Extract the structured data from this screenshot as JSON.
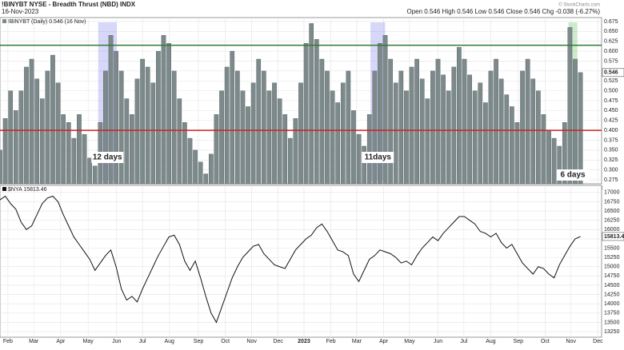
{
  "header": {
    "symbol": "!BINYBT NYSE - Breadth Thrust (NBD) INDX",
    "date": "16-Nov-2023",
    "quote": "Open 0.546 High 0.546 Low 0.546 Close 0.546 Chg -0.038 (-6.27%)",
    "watermark": "© StockCharts.com"
  },
  "chart_data": [
    {
      "type": "bar",
      "name": "!BINYBT (Daily) 0.546 (16 Nov)",
      "color": "#7d8a8c",
      "grid": true,
      "xlim": [
        0,
        114
      ],
      "ylim": [
        0.265,
        0.685
      ],
      "yticks": [
        0.275,
        {
          "value": 0.3,
          "label": "0.300"
        },
        0.325,
        {
          "value": 0.35,
          "label": "0.350"
        },
        0.375,
        {
          "value": 0.4,
          "label": "0.400"
        },
        0.425,
        {
          "value": 0.45,
          "label": "0.450"
        },
        0.475,
        {
          "value": 0.5,
          "label": "0.500"
        },
        0.525,
        {
          "value": 0.55,
          "label": "0.550"
        },
        0.575,
        {
          "value": 0.6,
          "label": "0.600"
        },
        0.625,
        {
          "value": 0.65,
          "label": "0.650"
        },
        0.675
      ],
      "xticks": [
        {
          "value": 1.5,
          "label": "Feb"
        },
        {
          "value": 6.4,
          "label": "Mar"
        },
        {
          "value": 11.5,
          "label": "Apr"
        },
        {
          "value": 16.7,
          "label": "May"
        },
        {
          "value": 22.1,
          "label": "Jun"
        },
        {
          "value": 27,
          "label": "Jul"
        },
        {
          "value": 32.1,
          "label": "Aug"
        },
        {
          "value": 37.6,
          "label": "Sep"
        },
        {
          "value": 42.7,
          "label": "Oct"
        },
        {
          "value": 47.7,
          "label": "Nov"
        },
        {
          "value": 52.7,
          "label": "Dec"
        },
        {
          "value": 57.6,
          "label": "2023"
        },
        {
          "value": 62.7,
          "label": "Feb"
        },
        {
          "value": 67.6,
          "label": "Mar"
        },
        {
          "value": 72.7,
          "label": "Apr"
        },
        {
          "value": 77.6,
          "label": "May"
        },
        {
          "value": 83,
          "label": "Jun"
        },
        {
          "value": 87.9,
          "label": "Jul"
        },
        {
          "value": 93,
          "label": "Aug"
        },
        {
          "value": 98.2,
          "label": "Sep"
        },
        {
          "value": 103.3,
          "label": "Oct"
        },
        {
          "value": 108.2,
          "label": "Nov"
        },
        {
          "value": 113.3,
          "label": "Dec"
        }
      ],
      "hlines": [
        {
          "value": 0.615,
          "color": "#2e7d32"
        },
        {
          "value": 0.4,
          "color": "#cc2222"
        }
      ],
      "annotations": [
        {
          "text": "12 days",
          "x0": 18.6,
          "x1": 22.1,
          "color": "#2a2aa8",
          "fill": "#8c8cf0"
        },
        {
          "text": "11days",
          "x0": 70.2,
          "x1": 73,
          "color": "#2a2aa8",
          "fill": "#8c8cf0"
        },
        {
          "text": "6 days",
          "x0": 107.7,
          "x1": 109.4,
          "color": "#2e7d32",
          "fill": "#6cc46c"
        }
      ],
      "values": [
        0.35,
        0.43,
        0.5,
        0.45,
        0.5,
        0.56,
        0.58,
        0.53,
        0.48,
        0.55,
        0.59,
        0.52,
        0.44,
        0.42,
        0.38,
        0.44,
        0.39,
        0.33,
        0.31,
        0.42,
        0.55,
        0.64,
        0.6,
        0.55,
        0.48,
        0.44,
        0.53,
        0.58,
        0.56,
        0.52,
        0.6,
        0.64,
        0.62,
        0.55,
        0.48,
        0.42,
        0.38,
        0.35,
        0.32,
        0.29,
        0.34,
        0.44,
        0.5,
        0.56,
        0.6,
        0.55,
        0.5,
        0.46,
        0.52,
        0.58,
        0.55,
        0.5,
        0.52,
        0.48,
        0.44,
        0.38,
        0.43,
        0.52,
        0.62,
        0.67,
        0.63,
        0.58,
        0.55,
        0.5,
        0.47,
        0.52,
        0.55,
        0.45,
        0.39,
        0.36,
        0.44,
        0.55,
        0.62,
        0.64,
        0.58,
        0.52,
        0.55,
        0.5,
        0.56,
        0.58,
        0.53,
        0.48,
        0.55,
        0.58,
        0.54,
        0.5,
        0.56,
        0.61,
        0.58,
        0.54,
        0.5,
        0.52,
        0.47,
        0.55,
        0.58,
        0.53,
        0.49,
        0.46,
        0.42,
        0.55,
        0.58,
        0.53,
        0.5,
        0.44,
        0.4,
        0.38,
        0.36,
        0.42,
        0.66,
        0.58,
        0.546
      ]
    },
    {
      "type": "line",
      "name": "$NYA 15813.46",
      "color": "#111111",
      "grid": true,
      "xlim": [
        0,
        114
      ],
      "ylim": [
        13100,
        17190
      ],
      "yticks": [
        13250,
        13500,
        13750,
        14000,
        14250,
        14500,
        14750,
        15000,
        15250,
        15500,
        15750,
        16000,
        16250,
        16500,
        16750,
        17000
      ],
      "xticks": [
        {
          "value": 1.5,
          "label": "Feb"
        },
        {
          "value": 6.4,
          "label": "Mar"
        },
        {
          "value": 11.5,
          "label": "Apr"
        },
        {
          "value": 16.7,
          "label": "May"
        },
        {
          "value": 22.1,
          "label": "Jun"
        },
        {
          "value": 27,
          "label": "Jul"
        },
        {
          "value": 32.1,
          "label": "Aug"
        },
        {
          "value": 37.6,
          "label": "Sep"
        },
        {
          "value": 42.7,
          "label": "Oct"
        },
        {
          "value": 47.7,
          "label": "Nov"
        },
        {
          "value": 52.7,
          "label": "Dec"
        },
        {
          "value": 57.6,
          "label": "2023"
        },
        {
          "value": 62.7,
          "label": "Feb"
        },
        {
          "value": 67.6,
          "label": "Mar"
        },
        {
          "value": 72.7,
          "label": "Apr"
        },
        {
          "value": 77.6,
          "label": "May"
        },
        {
          "value": 83,
          "label": "Jun"
        },
        {
          "value": 87.9,
          "label": "Jul"
        },
        {
          "value": 93,
          "label": "Aug"
        },
        {
          "value": 98.2,
          "label": "Sep"
        },
        {
          "value": 103.3,
          "label": "Oct"
        },
        {
          "value": 108.2,
          "label": "Nov"
        },
        {
          "value": 113.3,
          "label": "Dec"
        }
      ],
      "values": [
        16800,
        16900,
        16700,
        16550,
        16200,
        16000,
        16100,
        16400,
        16700,
        16850,
        16900,
        16750,
        16400,
        16100,
        15800,
        15600,
        15400,
        15200,
        14900,
        15100,
        15300,
        15450,
        15000,
        14400,
        14100,
        14200,
        14050,
        14400,
        14700,
        15000,
        15300,
        15550,
        15800,
        15850,
        15600,
        15150,
        14900,
        15150,
        14700,
        14200,
        13750,
        13500,
        13900,
        14300,
        14700,
        15000,
        15250,
        15400,
        15550,
        15600,
        15350,
        15200,
        15050,
        15000,
        14950,
        15200,
        15450,
        15600,
        15750,
        15850,
        16050,
        16150,
        15950,
        15700,
        15450,
        15400,
        15300,
        14800,
        14600,
        14900,
        15200,
        15300,
        15450,
        15400,
        15350,
        15250,
        15100,
        15150,
        15050,
        15300,
        15500,
        15650,
        15800,
        15700,
        15900,
        16050,
        16200,
        16350,
        16350,
        16250,
        16150,
        15950,
        15900,
        15800,
        15900,
        15650,
        15500,
        15600,
        15350,
        15100,
        14950,
        14800,
        15000,
        14950,
        14800,
        14700,
        15050,
        15300,
        15550,
        15750,
        15813.46
      ]
    }
  ]
}
